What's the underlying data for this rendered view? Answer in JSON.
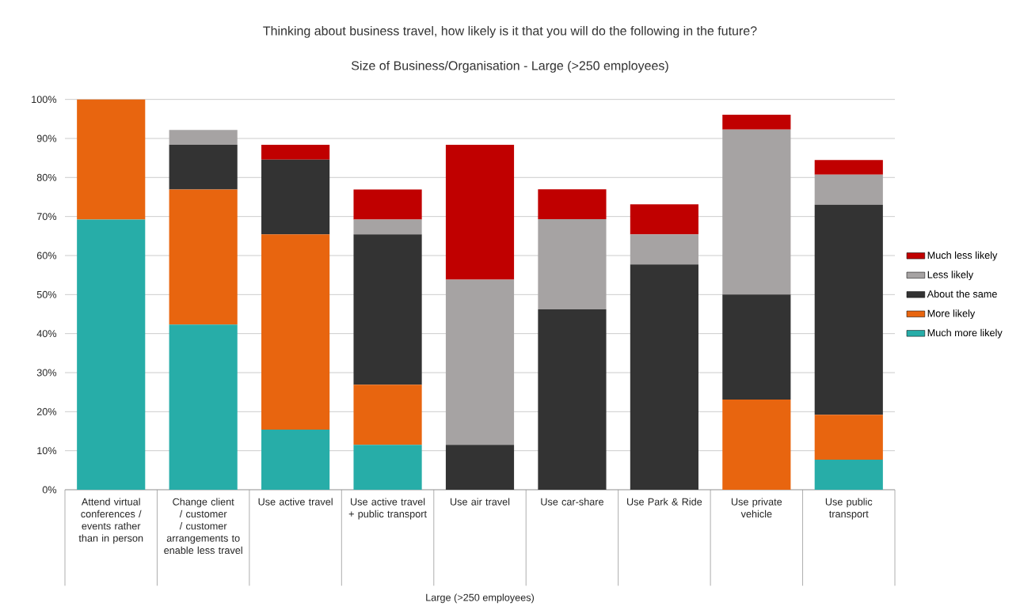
{
  "chart_data": {
    "type": "bar",
    "stacked": true,
    "title": "Thinking about business travel, how likely is it that you will do the following in the future?",
    "subtitle": "Size of Business/Organisation - Large (>250 employees)",
    "xlabel": "Large (>250 employees)",
    "categories": [
      "Attend virtual conferences / events rather than in person",
      "Change client / customer / customer arrangements to enable less travel",
      "Use active travel",
      "Use active travel + public transport",
      "Use air travel",
      "Use car-share",
      "Use Park & Ride",
      "Use private vehicle",
      "Use public transport"
    ],
    "series": [
      {
        "name": "Much more likely",
        "color": "#27ada8",
        "values": [
          69.2,
          42.3,
          15.4,
          11.5,
          0,
          0,
          0,
          0,
          7.7
        ]
      },
      {
        "name": "More likely",
        "color": "#e8650f",
        "values": [
          30.8,
          34.6,
          50.0,
          15.4,
          0,
          0,
          0,
          23.1,
          11.5
        ]
      },
      {
        "name": "About the same",
        "color": "#333333",
        "values": [
          0,
          11.5,
          19.2,
          38.5,
          11.5,
          46.2,
          57.7,
          26.9,
          53.8
        ]
      },
      {
        "name": "Less likely",
        "color": "#a6a3a3",
        "values": [
          0,
          3.8,
          0,
          3.8,
          42.3,
          23.1,
          7.7,
          42.3,
          7.7
        ]
      },
      {
        "name": "Much less likely",
        "color": "#c00000",
        "values": [
          0,
          0,
          3.8,
          7.7,
          34.6,
          7.7,
          7.7,
          3.8,
          3.8
        ]
      }
    ],
    "ylim": [
      0,
      100
    ],
    "yticks": [
      {
        "value": 0,
        "label": "0%"
      },
      {
        "value": 10,
        "label": "10%"
      },
      {
        "value": 20,
        "label": "20%"
      },
      {
        "value": 30,
        "label": "30%"
      },
      {
        "value": 40,
        "label": "40%"
      },
      {
        "value": 50,
        "label": "50%"
      },
      {
        "value": 60,
        "label": "60%"
      },
      {
        "value": 70,
        "label": "70%"
      },
      {
        "value": 80,
        "label": "80%"
      },
      {
        "value": 90,
        "label": "90%"
      },
      {
        "value": 100,
        "label": "100%"
      }
    ],
    "grid": "y",
    "legend": "right"
  }
}
